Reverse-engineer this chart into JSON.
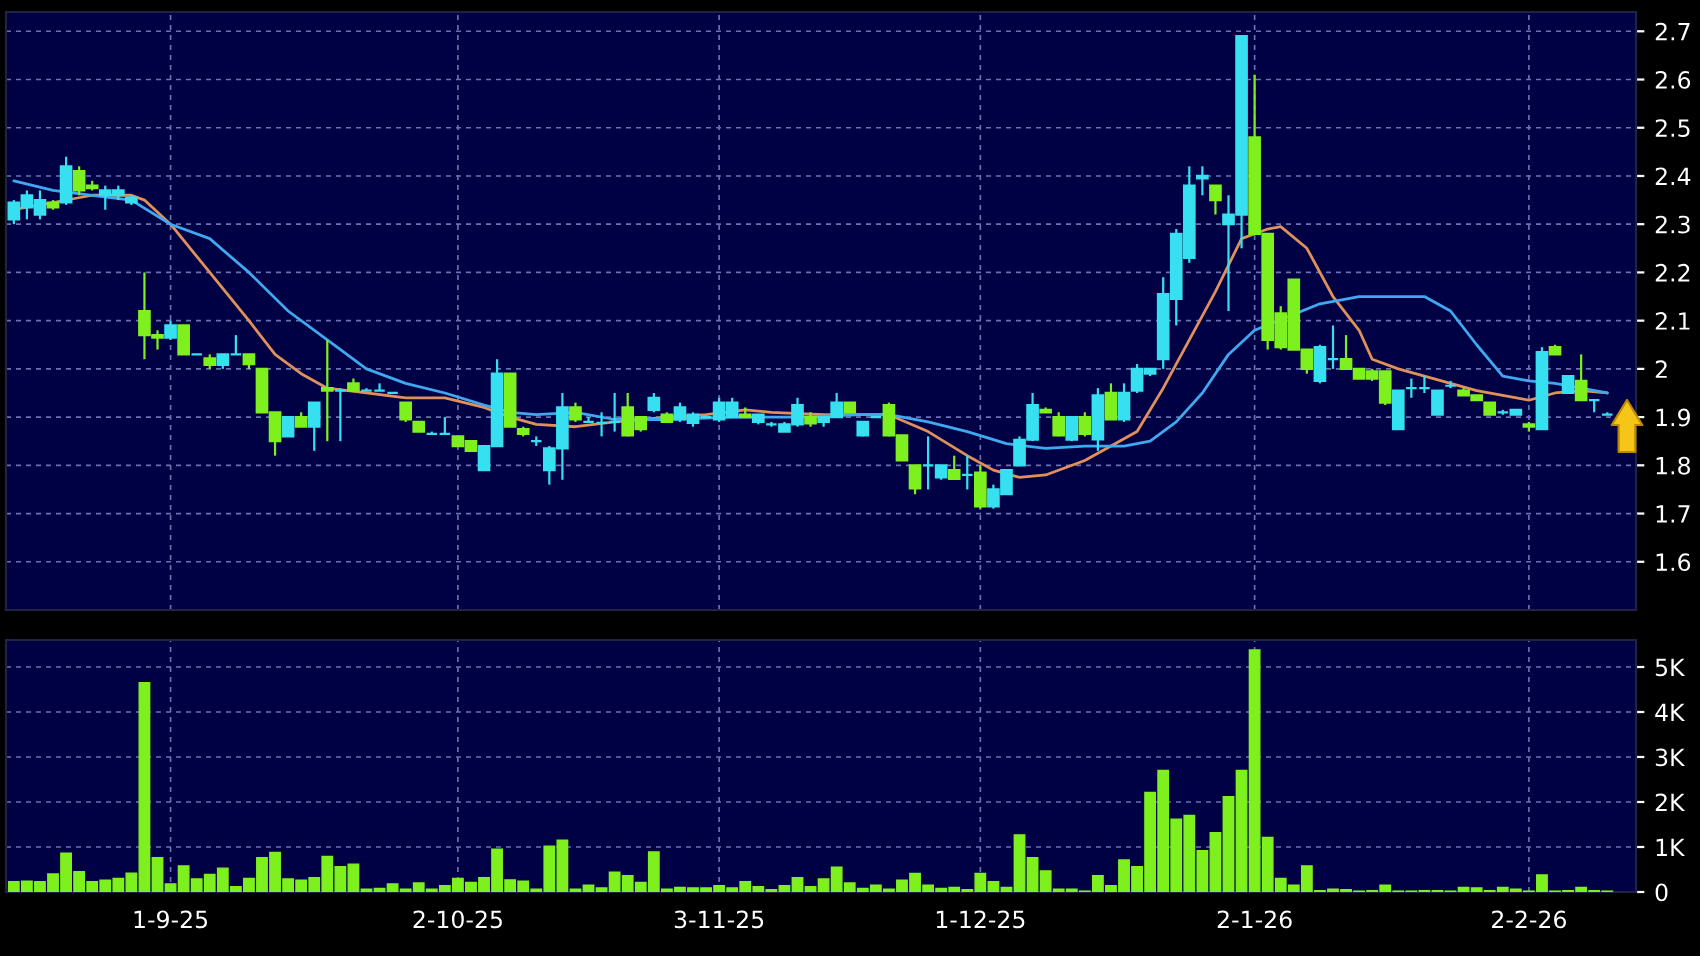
{
  "chart_data": [
    {
      "type": "candlestick",
      "categories": [
        null,
        null,
        null,
        null,
        null,
        null,
        null,
        null,
        null,
        null,
        null,
        null,
        null,
        null,
        null,
        null,
        null,
        null,
        null,
        null,
        null,
        null,
        null,
        null,
        null,
        null,
        null,
        null,
        null,
        null,
        null,
        null,
        null,
        null,
        null,
        null,
        null,
        null,
        null,
        null,
        null,
        null,
        null,
        null,
        null,
        null,
        null,
        null,
        null,
        null,
        null,
        null,
        null,
        null,
        null,
        null,
        null,
        null,
        null,
        null,
        null,
        null,
        null,
        null,
        null,
        null,
        null,
        null,
        null,
        null,
        null,
        null,
        null,
        null,
        null,
        null,
        null,
        null,
        null,
        null,
        null,
        null,
        null,
        null,
        null,
        null,
        null,
        null,
        null,
        null,
        null,
        null,
        null,
        null,
        null,
        null,
        null,
        null,
        null,
        null,
        null,
        null,
        null,
        null,
        null,
        null,
        null,
        null,
        null,
        null,
        null,
        null,
        null,
        null,
        null,
        null,
        null,
        null,
        null,
        null,
        null,
        null,
        null
      ],
      "ohlc": [
        [
          2.31,
          2.35,
          2.3,
          2.345
        ],
        [
          2.335,
          2.37,
          2.31,
          2.36
        ],
        [
          2.32,
          2.37,
          2.31,
          2.35
        ],
        [
          2.345,
          2.35,
          2.33,
          2.335
        ],
        [
          2.345,
          2.44,
          2.34,
          2.42
        ],
        [
          2.41,
          2.42,
          2.36,
          2.37
        ],
        [
          2.38,
          2.39,
          2.37,
          2.375
        ],
        [
          2.36,
          2.38,
          2.33,
          2.37
        ],
        [
          2.36,
          2.38,
          2.35,
          2.37
        ],
        [
          2.345,
          2.36,
          2.34,
          2.355
        ],
        [
          2.12,
          2.2,
          2.02,
          2.07
        ],
        [
          2.07,
          2.08,
          2.04,
          2.065
        ],
        [
          2.065,
          2.1,
          2.06,
          2.09
        ],
        [
          2.09,
          2.09,
          2.03,
          2.03
        ],
        [
          2.03,
          2.03,
          2.03,
          2.03
        ],
        [
          2.022,
          2.03,
          2,
          2.008
        ],
        [
          2.008,
          2.03,
          2,
          2.03
        ],
        [
          2.03,
          2.07,
          2.03,
          2.03
        ],
        [
          2.03,
          2.03,
          2,
          2.01
        ],
        [
          2,
          2,
          1.91,
          1.91
        ],
        [
          1.91,
          1.91,
          1.82,
          1.85
        ],
        [
          1.86,
          1.9,
          1.86,
          1.9
        ],
        [
          1.9,
          1.91,
          1.88,
          1.88
        ],
        [
          1.88,
          1.93,
          1.83,
          1.93
        ],
        [
          1.96,
          2.06,
          1.85,
          1.955
        ],
        [
          1.955,
          1.96,
          1.85,
          1.955
        ],
        [
          1.97,
          1.98,
          1.955,
          1.955
        ],
        [
          1.955,
          1.96,
          1.955,
          1.955
        ],
        [
          1.955,
          1.97,
          1.955,
          1.955
        ],
        [
          1.95,
          1.95,
          1.95,
          1.95
        ],
        [
          1.93,
          1.93,
          1.89,
          1.895
        ],
        [
          1.89,
          1.89,
          1.87,
          1.87
        ],
        [
          1.865,
          1.87,
          1.865,
          1.865
        ],
        [
          1.865,
          1.9,
          1.865,
          1.865
        ],
        [
          1.86,
          1.86,
          1.84,
          1.84
        ],
        [
          1.85,
          1.85,
          1.83,
          1.83
        ],
        [
          1.79,
          1.84,
          1.79,
          1.84
        ],
        [
          1.84,
          2.02,
          1.84,
          1.99
        ],
        [
          1.99,
          1.99,
          1.88,
          1.88
        ],
        [
          1.875,
          1.88,
          1.86,
          1.865
        ],
        [
          1.85,
          1.86,
          1.84,
          1.85
        ],
        [
          1.79,
          1.84,
          1.76,
          1.835
        ],
        [
          1.835,
          1.95,
          1.77,
          1.92
        ],
        [
          1.92,
          1.93,
          1.89,
          1.895
        ],
        [
          1.89,
          1.9,
          1.89,
          1.89
        ],
        [
          1.888,
          1.91,
          1.86,
          1.888
        ],
        [
          1.89,
          1.95,
          1.87,
          1.89
        ],
        [
          1.92,
          1.95,
          1.86,
          1.862
        ],
        [
          1.9,
          1.9,
          1.87,
          1.875
        ],
        [
          1.915,
          1.95,
          1.91,
          1.94
        ],
        [
          1.905,
          1.91,
          1.89,
          1.89
        ],
        [
          1.895,
          1.93,
          1.89,
          1.92
        ],
        [
          1.888,
          1.91,
          1.88,
          1.905
        ],
        [
          1.9,
          1.9,
          1.9,
          1.9
        ],
        [
          1.895,
          1.94,
          1.89,
          1.93
        ],
        [
          1.9,
          1.94,
          1.9,
          1.93
        ],
        [
          1.905,
          1.92,
          1.9,
          1.9
        ],
        [
          1.89,
          1.905,
          1.885,
          1.905
        ],
        [
          1.885,
          1.89,
          1.88,
          1.885
        ],
        [
          1.87,
          1.89,
          1.87,
          1.885
        ],
        [
          1.885,
          1.94,
          1.88,
          1.925
        ],
        [
          1.9,
          1.91,
          1.88,
          1.887
        ],
        [
          1.89,
          1.9,
          1.88,
          1.9
        ],
        [
          1.9,
          1.95,
          1.9,
          1.93
        ],
        [
          1.93,
          1.93,
          1.91,
          1.91
        ],
        [
          1.862,
          1.89,
          1.86,
          1.89
        ],
        [
          1.9,
          1.9,
          1.9,
          1.9
        ],
        [
          1.925,
          1.93,
          1.86,
          1.862
        ],
        [
          1.862,
          1.862,
          1.81,
          1.81
        ],
        [
          1.8,
          1.8,
          1.74,
          1.752
        ],
        [
          1.8,
          1.86,
          1.75,
          1.8
        ],
        [
          1.775,
          1.8,
          1.77,
          1.8
        ],
        [
          1.79,
          1.82,
          1.77,
          1.772
        ],
        [
          1.78,
          1.82,
          1.75,
          1.78
        ],
        [
          1.785,
          1.8,
          1.71,
          1.715
        ],
        [
          1.715,
          1.76,
          1.71,
          1.75
        ],
        [
          1.74,
          1.79,
          1.74,
          1.79
        ],
        [
          1.8,
          1.86,
          1.8,
          1.853
        ],
        [
          1.853,
          1.95,
          1.85,
          1.925
        ],
        [
          1.915,
          1.92,
          1.91,
          1.91
        ],
        [
          1.9,
          1.91,
          1.86,
          1.862
        ],
        [
          1.853,
          1.9,
          1.85,
          1.9
        ],
        [
          1.9,
          1.91,
          1.86,
          1.865
        ],
        [
          1.854,
          1.96,
          1.83,
          1.945
        ],
        [
          1.95,
          1.97,
          1.895,
          1.895
        ],
        [
          1.895,
          1.97,
          1.89,
          1.95
        ],
        [
          1.955,
          2.01,
          1.95,
          2
        ],
        [
          1.99,
          2,
          1.985,
          2
        ],
        [
          2.02,
          2.19,
          2,
          2.155
        ],
        [
          2.145,
          2.29,
          2.09,
          2.28
        ],
        [
          2.23,
          2.42,
          2.22,
          2.38
        ],
        [
          2.395,
          2.42,
          2.36,
          2.4
        ],
        [
          2.38,
          2.38,
          2.32,
          2.35
        ],
        [
          2.3,
          2.36,
          2.12,
          2.32
        ],
        [
          2.32,
          2.69,
          2.25,
          2.69
        ],
        [
          2.48,
          2.61,
          2.28,
          2.28
        ],
        [
          2.28,
          2.28,
          2.04,
          2.06
        ],
        [
          2.115,
          2.13,
          2.04,
          2.045
        ],
        [
          2.185,
          2.185,
          2.04,
          2.04
        ],
        [
          2.04,
          2.04,
          1.99,
          2
        ],
        [
          1.975,
          2.05,
          1.97,
          2.045
        ],
        [
          2.02,
          2.09,
          2,
          2.02
        ],
        [
          2.02,
          2.07,
          2,
          2
        ],
        [
          2,
          2,
          1.98,
          1.98
        ],
        [
          1.995,
          2,
          1.975,
          1.98
        ],
        [
          1.995,
          1.995,
          1.925,
          1.93
        ],
        [
          1.875,
          1.955,
          1.875,
          1.955
        ],
        [
          1.96,
          1.98,
          1.94,
          1.96
        ],
        [
          1.96,
          1.985,
          1.95,
          1.96
        ],
        [
          1.905,
          1.955,
          1.905,
          1.955
        ],
        [
          1.965,
          1.975,
          1.96,
          1.965
        ],
        [
          1.955,
          1.96,
          1.945,
          1.945
        ],
        [
          1.945,
          1.945,
          1.935,
          1.935
        ],
        [
          1.93,
          1.93,
          1.905,
          1.905
        ],
        [
          1.91,
          1.915,
          1.905,
          1.91
        ],
        [
          1.905,
          1.915,
          1.905,
          1.915
        ],
        [
          1.885,
          1.89,
          1.87,
          1.88
        ],
        [
          1.875,
          2.045,
          1.875,
          2.035
        ],
        [
          2.045,
          2.05,
          2.03,
          2.03
        ],
        [
          1.95,
          1.985,
          1.95,
          1.985
        ],
        [
          1.975,
          2.03,
          1.935,
          1.935
        ],
        [
          1.935,
          1.935,
          1.91,
          1.935
        ],
        [
          1.905,
          1.91,
          1.905,
          1.905
        ]
      ],
      "colors": [
        "#36e0f0",
        "#36e0f0",
        "#36e0f0",
        "#7ef01e",
        "#36e0f0",
        "#7ef01e",
        "#7ef01e",
        "#36e0f0",
        "#36e0f0",
        "#36e0f0",
        "#7ef01e",
        "#7ef01e",
        "#36e0f0",
        "#7ef01e",
        "#36e0f0",
        "#7ef01e",
        "#36e0f0",
        "#36e0f0",
        "#7ef01e",
        "#7ef01e",
        "#7ef01e",
        "#36e0f0",
        "#7ef01e",
        "#36e0f0",
        "#7ef01e",
        "#36e0f0",
        "#7ef01e",
        "#36e0f0",
        "#36e0f0",
        "#36e0f0",
        "#7ef01e",
        "#7ef01e",
        "#36e0f0",
        "#36e0f0",
        "#7ef01e",
        "#7ef01e",
        "#36e0f0",
        "#36e0f0",
        "#7ef01e",
        "#7ef01e",
        "#36e0f0",
        "#36e0f0",
        "#36e0f0",
        "#7ef01e",
        "#36e0f0",
        "#36e0f0",
        "#36e0f0",
        "#7ef01e",
        "#7ef01e",
        "#36e0f0",
        "#7ef01e",
        "#36e0f0",
        "#36e0f0",
        "#36e0f0",
        "#36e0f0",
        "#36e0f0",
        "#7ef01e",
        "#36e0f0",
        "#36e0f0",
        "#36e0f0",
        "#36e0f0",
        "#7ef01e",
        "#36e0f0",
        "#36e0f0",
        "#7ef01e",
        "#36e0f0",
        "#36e0f0",
        "#7ef01e",
        "#7ef01e",
        "#7ef01e",
        "#36e0f0",
        "#36e0f0",
        "#7ef01e",
        "#36e0f0",
        "#7ef01e",
        "#36e0f0",
        "#36e0f0",
        "#36e0f0",
        "#36e0f0",
        "#7ef01e",
        "#7ef01e",
        "#36e0f0",
        "#7ef01e",
        "#36e0f0",
        "#7ef01e",
        "#36e0f0",
        "#36e0f0",
        "#36e0f0",
        "#36e0f0",
        "#36e0f0",
        "#36e0f0",
        "#36e0f0",
        "#7ef01e",
        "#36e0f0",
        "#36e0f0",
        "#7ef01e",
        "#7ef01e",
        "#7ef01e",
        "#7ef01e",
        "#7ef01e",
        "#36e0f0",
        "#36e0f0",
        "#7ef01e",
        "#7ef01e",
        "#7ef01e",
        "#7ef01e",
        "#36e0f0",
        "#36e0f0",
        "#36e0f0",
        "#36e0f0",
        "#36e0f0",
        "#7ef01e",
        "#7ef01e",
        "#7ef01e",
        "#36e0f0",
        "#36e0f0",
        "#7ef01e",
        "#36e0f0",
        "#7ef01e",
        "#36e0f0",
        "#7ef01e",
        "#36e0f0",
        "#36e0f0"
      ],
      "series": [
        {
          "type": "line",
          "color": "#e0905a",
          "values": [
            2.33,
            null,
            null,
            2.345,
            null,
            null,
            2.36,
            null,
            null,
            2.36,
            2.35,
            null,
            2.3,
            null,
            null,
            2.2,
            null,
            null,
            2.1,
            null,
            2.03,
            null,
            1.99,
            null,
            1.96,
            null,
            null,
            1.95,
            null,
            null,
            1.94,
            null,
            null,
            1.94,
            null,
            null,
            1.92,
            null,
            1.9,
            null,
            1.885,
            null,
            null,
            1.88,
            null,
            null,
            1.89,
            null,
            null,
            null,
            1.9,
            null,
            null,
            1.905,
            null,
            null,
            1.915,
            null,
            1.91,
            null,
            null,
            null,
            1.905,
            null,
            null,
            1.905,
            null,
            1.905,
            null,
            null,
            1.87,
            null,
            null,
            1.82,
            null,
            1.79,
            null,
            1.775,
            null,
            1.78,
            null,
            null,
            1.81,
            null,
            1.84,
            null,
            1.87,
            null,
            1.96,
            null,
            2.06,
            null,
            2.16,
            null,
            2.27,
            null,
            2.29,
            2.295,
            null,
            2.25,
            null,
            2.15,
            null,
            2.08,
            2.02,
            null,
            2,
            null,
            1.985,
            null,
            1.97,
            null,
            1.955,
            null,
            1.945,
            null,
            1.935,
            null,
            1.95,
            null,
            1.955,
            null,
            1.95
          ]
        },
        {
          "type": "line",
          "color": "#40a8f0",
          "values": [
            2.39,
            null,
            null,
            2.37,
            null,
            null,
            2.36,
            null,
            null,
            2.35,
            null,
            null,
            2.3,
            null,
            null,
            2.27,
            null,
            null,
            2.2,
            null,
            null,
            2.12,
            null,
            null,
            2.06,
            null,
            null,
            2,
            null,
            null,
            1.97,
            null,
            null,
            1.95,
            null,
            null,
            1.925,
            null,
            1.91,
            null,
            1.905,
            null,
            null,
            1.91,
            null,
            null,
            1.895,
            null,
            null,
            null,
            1.895,
            null,
            null,
            null,
            null,
            1.9,
            null,
            null,
            null,
            null,
            1.9,
            null,
            null,
            null,
            null,
            1.905,
            null,
            1.905,
            null,
            null,
            1.89,
            null,
            null,
            1.87,
            null,
            null,
            1.845,
            null,
            null,
            1.835,
            null,
            null,
            1.84,
            null,
            null,
            1.84,
            null,
            1.85,
            null,
            1.89,
            null,
            1.95,
            null,
            2.03,
            null,
            2.08,
            null,
            null,
            null,
            null,
            2.135,
            null,
            null,
            2.15,
            null,
            null,
            2.15,
            null,
            2.15,
            null,
            2.12,
            null,
            2.05,
            null,
            1.985,
            null,
            1.975,
            null,
            1.97,
            null,
            1.96,
            null,
            1.95
          ]
        }
      ],
      "ylim": [
        1.5,
        2.74
      ],
      "yticks": [
        1.6,
        1.7,
        1.8,
        1.9,
        2,
        2.1,
        2.2,
        2.3,
        2.4,
        2.5,
        2.6,
        2.7
      ],
      "grid": true,
      "tick_labels": "y"
    },
    {
      "type": "bar",
      "categories": [
        null,
        null,
        null,
        null,
        null,
        null,
        null,
        null,
        null,
        null,
        null,
        null,
        "1-9-25",
        null,
        null,
        null,
        null,
        null,
        null,
        null,
        null,
        null,
        null,
        null,
        null,
        null,
        null,
        null,
        null,
        null,
        null,
        null,
        null,
        null,
        "2-10-25",
        null,
        null,
        null,
        null,
        null,
        null,
        null,
        null,
        null,
        null,
        null,
        null,
        null,
        null,
        null,
        null,
        null,
        null,
        null,
        "3-11-25",
        null,
        null,
        null,
        null,
        null,
        null,
        null,
        null,
        null,
        null,
        null,
        null,
        null,
        null,
        null,
        null,
        null,
        null,
        null,
        "1-12-25",
        null,
        null,
        null,
        null,
        null,
        null,
        null,
        null,
        null,
        null,
        null,
        null,
        null,
        null,
        null,
        null,
        null,
        null,
        null,
        null,
        "2-1-26",
        null,
        null,
        null,
        null,
        null,
        null,
        null,
        null,
        null,
        null,
        null,
        null,
        null,
        null,
        null,
        null,
        null,
        null,
        null,
        null,
        "2-2-26",
        null,
        null,
        null,
        null,
        null,
        null
      ],
      "values": [
        0.23,
        0.24,
        0.23,
        0.4,
        0.86,
        0.45,
        0.23,
        0.26,
        0.3,
        0.42,
        4.65,
        0.76,
        0.18,
        0.58,
        0.29,
        0.39,
        0.53,
        0.12,
        0.3,
        0.76,
        0.88,
        0.29,
        0.26,
        0.32,
        0.79,
        0.56,
        0.62,
        0.06,
        0.08,
        0.18,
        0.06,
        0.2,
        0.06,
        0.14,
        0.3,
        0.21,
        0.32,
        0.95,
        0.27,
        0.24,
        0.06,
        1.02,
        1.15,
        0.06,
        0.15,
        0.09,
        0.44,
        0.36,
        0.21,
        0.89,
        0.06,
        0.1,
        0.09,
        0.09,
        0.14,
        0.09,
        0.23,
        0.12,
        0.05,
        0.14,
        0.32,
        0.12,
        0.29,
        0.55,
        0.2,
        0.08,
        0.15,
        0.06,
        0.26,
        0.41,
        0.15,
        0.08,
        0.1,
        0.05,
        0.41,
        0.23,
        0.1,
        1.27,
        0.76,
        0.47,
        0.06,
        0.06,
        0.02,
        0.36,
        0.14,
        0.71,
        0.56,
        2.21,
        2.7,
        1.62,
        1.7,
        0.92,
        1.32,
        2.12,
        2.7,
        5.38,
        1.21,
        0.3,
        0.15,
        0.58,
        0.03,
        0.06,
        0.05,
        0.02,
        0.03,
        0.15,
        0.02,
        0.02,
        0.03,
        0.03,
        0.02,
        0.1,
        0.09,
        0.03,
        0.1,
        0.06,
        0.02,
        0.38,
        0.02,
        0.03,
        0.1,
        0.03,
        0.02
      ],
      "color": "#7ef01e",
      "ylim": [
        0,
        5.6
      ],
      "yticks": [
        0,
        {
          "value": 1,
          "label": "1K"
        },
        {
          "value": 2,
          "label": "2K"
        },
        {
          "value": 3,
          "label": "3K"
        },
        {
          "value": 4,
          "label": "4K"
        },
        {
          "value": 5,
          "label": "5K"
        }
      ],
      "grid": true
    }
  ]
}
